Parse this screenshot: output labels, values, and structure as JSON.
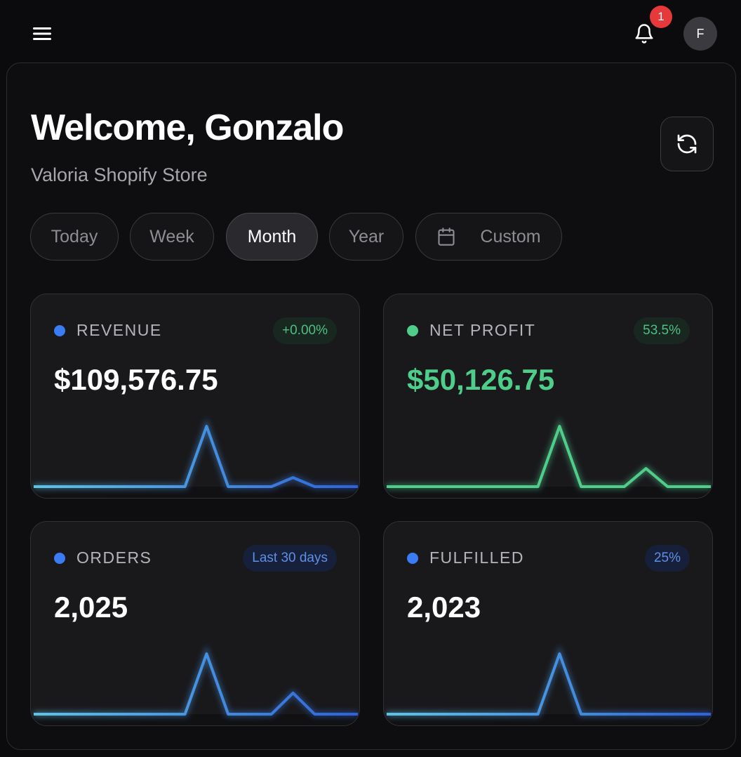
{
  "header": {
    "menu_icon": "hamburger-menu-icon",
    "notification_icon": "bell-icon",
    "notification_count": "1",
    "avatar_initial": "F"
  },
  "welcome": {
    "title": "Welcome, Gonzalo",
    "subtitle": "Valoria Shopify Store",
    "refresh_icon": "refresh-icon"
  },
  "periods": [
    {
      "label": "Today",
      "active": false
    },
    {
      "label": "Week",
      "active": false
    },
    {
      "label": "Month",
      "active": true
    },
    {
      "label": "Year",
      "active": false
    },
    {
      "label": "Custom",
      "active": false,
      "icon": "calendar-icon"
    }
  ],
  "cards": [
    {
      "label": "REVENUE",
      "badge": "+0.00%",
      "value": "$109,576.75",
      "dot_color": "#3b7cf4",
      "badge_style": "green",
      "value_color": "white",
      "series": [
        0,
        0,
        0,
        0,
        0,
        0,
        0,
        0,
        1,
        0,
        0,
        0,
        0.15,
        0,
        0,
        0
      ],
      "colors": [
        "#5ec3e6",
        "#2f62d8"
      ]
    },
    {
      "label": "NET PROFIT",
      "badge": "53.5%",
      "value": "$50,126.75",
      "dot_color": "#4fce8b",
      "badge_style": "green",
      "value_color": "green",
      "series": [
        0,
        0,
        0,
        0,
        0,
        0,
        0,
        0,
        1,
        0,
        0,
        0,
        0.3,
        0,
        0,
        0
      ],
      "colors": [
        "#4fce8b",
        "#4fce8b"
      ]
    },
    {
      "label": "ORDERS",
      "badge": "Last 30 days",
      "value": "2,025",
      "dot_color": "#3b7cf4",
      "badge_style": "blue",
      "value_color": "white",
      "series": [
        0,
        0,
        0,
        0,
        0,
        0,
        0,
        0,
        1,
        0,
        0,
        0,
        0.35,
        0,
        0,
        0
      ],
      "colors": [
        "#5ec3e6",
        "#2f62d8"
      ]
    },
    {
      "label": "FULFILLED",
      "badge": "25%",
      "value": "2,023",
      "dot_color": "#3b7cf4",
      "badge_style": "blue",
      "value_color": "white",
      "series": [
        0,
        0,
        0,
        0,
        0,
        0,
        0,
        0,
        1,
        0,
        0,
        0,
        0,
        0,
        0,
        0
      ],
      "colors": [
        "#5ec3e6",
        "#2f62d8"
      ]
    }
  ],
  "colors": {
    "background": "#0b0b0d",
    "card": "#19191c",
    "accent_blue": "#3b7cf4",
    "accent_green": "#4fce8b",
    "badge_red": "#e5393b"
  }
}
